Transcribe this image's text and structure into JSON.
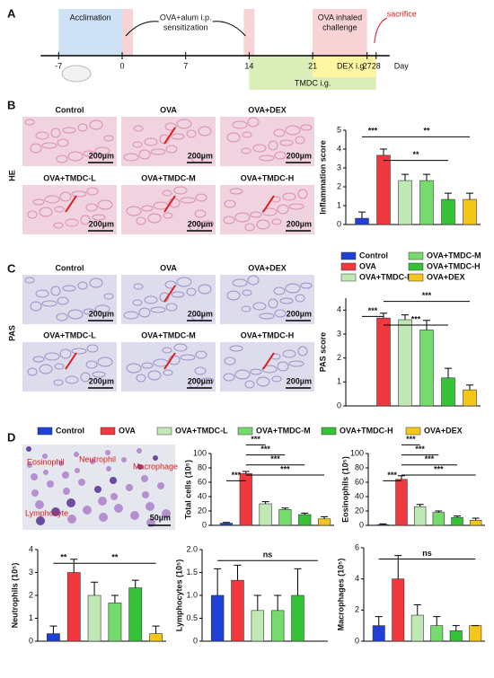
{
  "panel_labels": [
    "A",
    "B",
    "C",
    "D"
  ],
  "timeline": {
    "ticks": [
      -7,
      0,
      7,
      14,
      21,
      27,
      28
    ],
    "unit": "Day",
    "acclimation": "Acclimation",
    "sensitization": [
      "OVA+alum i.p.",
      "sensitization"
    ],
    "challenge": [
      "OVA inhaled",
      "challenge"
    ],
    "sacrifice": "sacrifice",
    "dex": "DEX i.g.",
    "tmdc": "TMDC i.g."
  },
  "histology": {
    "groups": [
      "Control",
      "OVA",
      "OVA+DEX",
      "OVA+TMDC-L",
      "OVA+TMDC-M",
      "OVA+TMDC-H"
    ],
    "stains": [
      "HE",
      "PAS"
    ],
    "scale_bar": "200µm"
  },
  "smear": {
    "cells": [
      "Eosinophil",
      "Neutrophil",
      "Macrophage",
      "Lymphocyte"
    ],
    "scale_bar": "50µm"
  },
  "legend": [
    {
      "name": "Control",
      "color": "#1f3fd6"
    },
    {
      "name": "OVA",
      "color": "#f0393f"
    },
    {
      "name": "OVA+TMDC-L",
      "color": "#bfe8b5"
    },
    {
      "name": "OVA+TMDC-M",
      "color": "#74db6c"
    },
    {
      "name": "OVA+TMDC-H",
      "color": "#35c236"
    },
    {
      "name": "OVA+DEX",
      "color": "#f5c61a"
    }
  ],
  "chart_data": [
    {
      "type": "bar",
      "ylabel": "Inflammation score",
      "values": [
        0.33,
        3.67,
        2.33,
        2.33,
        1.33,
        1.33
      ],
      "errors": [
        0.33,
        0.33,
        0.33,
        0.33,
        0.33,
        0.33
      ],
      "ylim": [
        0,
        5
      ],
      "yticks": [
        0,
        1,
        2,
        3,
        4,
        5
      ],
      "brackets": [
        "***",
        "**",
        "**"
      ]
    },
    {
      "type": "bar",
      "ylabel": "PAS score",
      "values": [
        0,
        3.67,
        3.6,
        3.17,
        1.17,
        0.67
      ],
      "errors": [
        0,
        0.2,
        0.2,
        0.4,
        0.4,
        0.2
      ],
      "ylim": [
        0,
        4.5
      ],
      "yticks": [
        0,
        1,
        2,
        3,
        4
      ],
      "brackets": [
        "***",
        "***",
        "***"
      ]
    },
    {
      "type": "bar",
      "ylabel": "Total cells (10⁵)",
      "values": [
        3,
        72,
        30,
        22,
        15,
        9
      ],
      "errors": [
        1,
        3,
        3,
        2,
        2,
        3
      ],
      "ylim": [
        0,
        100
      ],
      "yticks": [
        0,
        20,
        40,
        60,
        80,
        100
      ],
      "brackets": [
        "***",
        "***",
        "***",
        "***",
        "***"
      ]
    },
    {
      "type": "bar",
      "ylabel": "Eosinophils (10⁵)",
      "values": [
        1,
        64,
        26,
        18,
        11,
        7
      ],
      "errors": [
        1,
        5,
        3,
        2,
        2,
        3
      ],
      "ylim": [
        0,
        100
      ],
      "yticks": [
        0,
        20,
        40,
        60,
        80,
        100
      ],
      "brackets": [
        "***",
        "***",
        "***",
        "***",
        "***"
      ]
    },
    {
      "type": "bar",
      "ylabel": "Neutrophils (10⁵)",
      "values": [
        0.33,
        3,
        2,
        1.67,
        2.33,
        0.33
      ],
      "errors": [
        0.33,
        0.58,
        0.58,
        0.33,
        0.33,
        0.33
      ],
      "ylim": [
        0,
        4
      ],
      "yticks": [
        0,
        1,
        2,
        3,
        4
      ],
      "brackets": [
        "**",
        "**"
      ]
    },
    {
      "type": "bar",
      "ylabel": "Lymphocytes (10⁵)",
      "values": [
        1,
        1.33,
        0.67,
        0.67,
        1,
        0
      ],
      "errors": [
        0.58,
        0.33,
        0.33,
        0.33,
        0.58,
        0
      ],
      "ylim": [
        0,
        2
      ],
      "yticks": [
        0,
        0.5,
        {
          "value": 1,
          "label": "1.0"
        },
        1.5,
        {
          "value": 2,
          "label": "2.0"
        }
      ],
      "brackets": [
        "ns"
      ]
    },
    {
      "type": "bar",
      "ylabel": "Macrophages (10⁵)",
      "values": [
        1,
        4,
        1.67,
        1,
        0.67,
        1
      ],
      "errors": [
        0.58,
        1.5,
        0.67,
        0.58,
        0.33,
        0
      ],
      "ylim": [
        0,
        6
      ],
      "yticks": [
        0,
        2,
        4,
        6
      ],
      "brackets": [
        "ns"
      ]
    }
  ]
}
